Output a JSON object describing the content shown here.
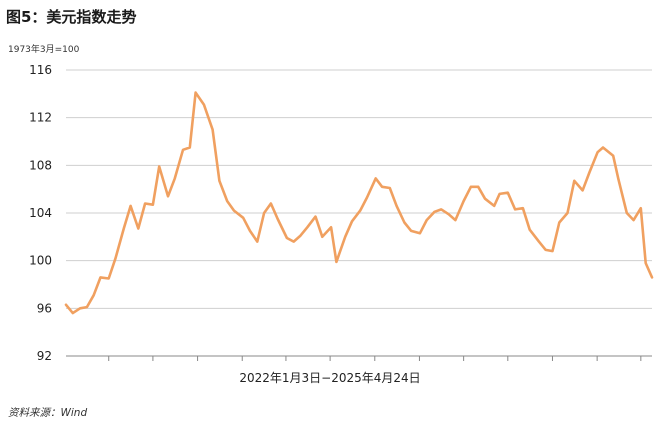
{
  "title": "图5：美元指数走势",
  "unit_label": "1973年3月=100",
  "source_label": "资料来源：Wind",
  "line_color": "#f0a060",
  "chart_data": {
    "type": "line",
    "title": "图5：美元指数走势",
    "xlabel": "2022年1月3日−2025年4月24日",
    "ylabel": "1973年3月=100",
    "ylim": [
      92,
      116
    ],
    "yticks": [
      92,
      96,
      100,
      104,
      108,
      112,
      116
    ],
    "ytick_labels": [
      "92",
      "96",
      "100",
      "104",
      "108",
      "112",
      "116"
    ],
    "grid": true,
    "legend": "none",
    "series": [
      {
        "x": [
          "2022-01-03",
          "2022-01-17",
          "2022-02-01",
          "2022-02-15",
          "2022-03-01",
          "2022-03-15",
          "2022-04-01",
          "2022-04-15",
          "2022-05-02",
          "2022-05-16",
          "2022-06-01",
          "2022-06-15",
          "2022-07-01",
          "2022-07-14",
          "2022-08-01",
          "2022-08-15",
          "2022-09-01",
          "2022-09-15",
          "2022-09-27",
          "2022-10-14",
          "2022-11-01",
          "2022-11-15",
          "2022-12-01",
          "2022-12-15",
          "2023-01-03",
          "2023-01-17",
          "2023-02-01",
          "2023-02-15",
          "2023-03-01",
          "2023-03-15",
          "2023-04-03",
          "2023-04-17",
          "2023-05-01",
          "2023-05-15",
          "2023-06-01",
          "2023-06-15",
          "2023-07-03",
          "2023-07-14",
          "2023-08-01",
          "2023-08-15",
          "2023-09-01",
          "2023-09-15",
          "2023-10-03",
          "2023-10-16",
          "2023-11-01",
          "2023-11-15",
          "2023-12-01",
          "2023-12-15",
          "2024-01-02",
          "2024-01-16",
          "2024-02-01",
          "2024-02-15",
          "2024-03-01",
          "2024-03-15",
          "2024-04-01",
          "2024-04-16",
          "2024-05-01",
          "2024-05-15",
          "2024-06-03",
          "2024-06-14",
          "2024-07-01",
          "2024-07-16",
          "2024-08-01",
          "2024-08-15",
          "2024-09-03",
          "2024-09-17",
          "2024-10-01",
          "2024-10-15",
          "2024-11-01",
          "2024-11-15",
          "2024-12-02",
          "2024-12-16",
          "2025-01-02",
          "2025-01-13",
          "2025-02-03",
          "2025-02-14",
          "2025-03-03",
          "2025-03-17",
          "2025-04-01",
          "2025-04-11",
          "2025-04-24"
        ],
        "y": [
          96.3,
          95.6,
          96.0,
          96.1,
          97.1,
          98.6,
          98.5,
          100.2,
          102.7,
          104.6,
          102.7,
          104.8,
          104.7,
          107.9,
          105.4,
          106.9,
          109.3,
          109.5,
          114.1,
          113.1,
          111.0,
          106.7,
          105.0,
          104.2,
          103.6,
          102.5,
          101.6,
          104.0,
          104.8,
          103.5,
          101.9,
          101.6,
          102.1,
          102.8,
          103.7,
          102.0,
          102.8,
          99.9,
          102.0,
          103.3,
          104.2,
          105.3,
          106.9,
          106.2,
          106.1,
          104.6,
          103.2,
          102.5,
          102.3,
          103.4,
          104.1,
          104.3,
          103.9,
          103.4,
          105.0,
          106.2,
          106.2,
          105.2,
          104.6,
          105.6,
          105.7,
          104.3,
          104.4,
          102.6,
          101.6,
          100.9,
          100.8,
          103.2,
          104.0,
          106.7,
          105.9,
          107.4,
          109.1,
          109.5,
          108.8,
          106.8,
          104.0,
          103.4,
          104.4,
          99.8,
          98.6
        ]
      }
    ]
  }
}
